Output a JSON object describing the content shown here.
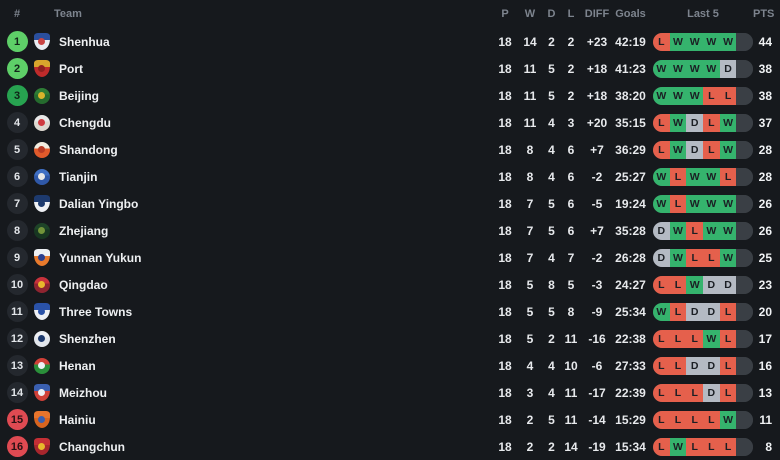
{
  "header": {
    "rank": "#",
    "team": "Team",
    "p": "P",
    "w": "W",
    "d": "D",
    "l": "L",
    "diff": "DIFF",
    "goals": "Goals",
    "last5": "Last 5",
    "pts": "PTS"
  },
  "colors": {
    "bg": "#16191d",
    "win": "#35b36d",
    "loss": "#e5604c",
    "draw": "#b4bac3",
    "empty": "#3a3f45",
    "cell-letter": "#1b1f24",
    "header-text": "#7d848e",
    "row-text": "#e7e9ec",
    "rank-top": "#5ecf68",
    "rank-third": "#27a350",
    "rank-default": "#24282e",
    "rank-relegation": "#df4a52"
  },
  "table": {
    "rows": [
      {
        "rank": 1,
        "rank_style": "top",
        "team": "Shenhua",
        "p": 18,
        "w": 14,
        "d": 2,
        "l": 2,
        "diff": "+23",
        "goals": "42:19",
        "last5": [
          "L",
          "W",
          "W",
          "W",
          "W"
        ],
        "pts": 44,
        "badge": {
          "shape": "shield",
          "colors": [
            "#2a4f9e",
            "#e8ecf2",
            "#c94444"
          ]
        }
      },
      {
        "rank": 2,
        "rank_style": "top",
        "team": "Port",
        "p": 18,
        "w": 11,
        "d": 5,
        "l": 2,
        "diff": "+18",
        "goals": "41:23",
        "last5": [
          "W",
          "W",
          "W",
          "W",
          "D"
        ],
        "pts": 38,
        "badge": {
          "shape": "shield",
          "colors": [
            "#d9a52c",
            "#bf2b2b",
            "#8f1f1f"
          ]
        }
      },
      {
        "rank": 3,
        "rank_style": "third",
        "team": "Beijing",
        "p": 18,
        "w": 11,
        "d": 5,
        "l": 2,
        "diff": "+18",
        "goals": "38:20",
        "last5": [
          "W",
          "W",
          "W",
          "L",
          "L"
        ],
        "pts": 38,
        "badge": {
          "shape": "circle",
          "colors": [
            "#2e7d36",
            "#256b2e",
            "#d9b42c"
          ]
        }
      },
      {
        "rank": 4,
        "rank_style": "default",
        "team": "Chengdu",
        "p": 18,
        "w": 11,
        "d": 4,
        "l": 3,
        "diff": "+20",
        "goals": "35:15",
        "last5": [
          "L",
          "W",
          "D",
          "L",
          "W"
        ],
        "pts": 37,
        "badge": {
          "shape": "circle",
          "colors": [
            "#e8e8e8",
            "#ddd8d0",
            "#cf3a40"
          ]
        }
      },
      {
        "rank": 5,
        "rank_style": "default",
        "team": "Shandong",
        "p": 18,
        "w": 8,
        "d": 4,
        "l": 6,
        "diff": "+7",
        "goals": "36:29",
        "last5": [
          "L",
          "W",
          "D",
          "L",
          "W"
        ],
        "pts": 28,
        "badge": {
          "shape": "circle",
          "colors": [
            "#f2ede0",
            "#e05a2b",
            "#b83a24"
          ]
        }
      },
      {
        "rank": 6,
        "rank_style": "default",
        "team": "Tianjin",
        "p": 18,
        "w": 8,
        "d": 4,
        "l": 6,
        "diff": "-2",
        "goals": "25:27",
        "last5": [
          "W",
          "L",
          "W",
          "W",
          "L"
        ],
        "pts": 28,
        "badge": {
          "shape": "circle",
          "colors": [
            "#3f6fc4",
            "#2f58a8",
            "#e8e8e8"
          ]
        }
      },
      {
        "rank": 7,
        "rank_style": "default",
        "team": "Dalian Yingbo",
        "p": 18,
        "w": 7,
        "d": 5,
        "l": 6,
        "diff": "-5",
        "goals": "19:24",
        "last5": [
          "W",
          "L",
          "W",
          "W",
          "W"
        ],
        "pts": 26,
        "badge": {
          "shape": "shield",
          "colors": [
            "#1d3a6e",
            "#eef0f4",
            "#1d3a6e"
          ]
        }
      },
      {
        "rank": 8,
        "rank_style": "default",
        "team": "Zhejiang",
        "p": 18,
        "w": 7,
        "d": 5,
        "l": 6,
        "diff": "+7",
        "goals": "35:28",
        "last5": [
          "D",
          "W",
          "L",
          "W",
          "W"
        ],
        "pts": 26,
        "badge": {
          "shape": "circle",
          "colors": [
            "#1e4428",
            "#173621",
            "#72943a"
          ]
        }
      },
      {
        "rank": 9,
        "rank_style": "default",
        "team": "Yunnan Yukun",
        "p": 18,
        "w": 7,
        "d": 4,
        "l": 7,
        "diff": "-2",
        "goals": "26:28",
        "last5": [
          "D",
          "W",
          "L",
          "L",
          "W"
        ],
        "pts": 25,
        "badge": {
          "shape": "shield",
          "colors": [
            "#eef0f4",
            "#e87a2c",
            "#2b3f8f"
          ]
        }
      },
      {
        "rank": 10,
        "rank_style": "default",
        "team": "Qingdao",
        "p": 18,
        "w": 5,
        "d": 8,
        "l": 5,
        "diff": "-3",
        "goals": "24:27",
        "last5": [
          "L",
          "L",
          "W",
          "D",
          "D"
        ],
        "pts": 23,
        "badge": {
          "shape": "circle",
          "colors": [
            "#c8323c",
            "#8f2430",
            "#e8b82c"
          ]
        }
      },
      {
        "rank": 11,
        "rank_style": "default",
        "team": "Three Towns",
        "p": 18,
        "w": 5,
        "d": 5,
        "l": 8,
        "diff": "-9",
        "goals": "25:34",
        "last5": [
          "W",
          "L",
          "D",
          "D",
          "L"
        ],
        "pts": 20,
        "badge": {
          "shape": "shield",
          "colors": [
            "#2a52a8",
            "#eef0f4",
            "#2a52a8"
          ]
        }
      },
      {
        "rank": 12,
        "rank_style": "default",
        "team": "Shenzhen",
        "p": 18,
        "w": 5,
        "d": 2,
        "l": 11,
        "diff": "-16",
        "goals": "22:38",
        "last5": [
          "L",
          "L",
          "L",
          "W",
          "L"
        ],
        "pts": 17,
        "badge": {
          "shape": "circle",
          "colors": [
            "#eef0f4",
            "#e2e6ec",
            "#1d3a6e"
          ]
        }
      },
      {
        "rank": 13,
        "rank_style": "default",
        "team": "Henan",
        "p": 18,
        "w": 4,
        "d": 4,
        "l": 10,
        "diff": "-6",
        "goals": "27:33",
        "last5": [
          "L",
          "L",
          "D",
          "D",
          "L"
        ],
        "pts": 16,
        "badge": {
          "shape": "circle",
          "colors": [
            "#d04038",
            "#2a8f3a",
            "#eef0f4"
          ]
        }
      },
      {
        "rank": 14,
        "rank_style": "default",
        "team": "Meizhou",
        "p": 18,
        "w": 3,
        "d": 4,
        "l": 11,
        "diff": "-17",
        "goals": "22:39",
        "last5": [
          "L",
          "L",
          "L",
          "D",
          "L"
        ],
        "pts": 13,
        "badge": {
          "shape": "shield",
          "colors": [
            "#3a5fb0",
            "#d04038",
            "#eef0f4"
          ]
        }
      },
      {
        "rank": 15,
        "rank_style": "relegation",
        "team": "Hainiu",
        "p": 18,
        "w": 2,
        "d": 5,
        "l": 11,
        "diff": "-14",
        "goals": "15:29",
        "last5": [
          "L",
          "L",
          "L",
          "L",
          "W"
        ],
        "pts": 11,
        "badge": {
          "shape": "shield",
          "colors": [
            "#e8742c",
            "#d8641f",
            "#3a5fb0"
          ]
        }
      },
      {
        "rank": 16,
        "rank_style": "relegation",
        "team": "Changchun",
        "p": 18,
        "w": 2,
        "d": 2,
        "l": 14,
        "diff": "-19",
        "goals": "15:34",
        "last5": [
          "L",
          "W",
          "L",
          "L",
          "L"
        ],
        "pts": 8,
        "badge": {
          "shape": "shield",
          "colors": [
            "#c42f35",
            "#a8262d",
            "#e8b82c"
          ]
        }
      }
    ]
  }
}
